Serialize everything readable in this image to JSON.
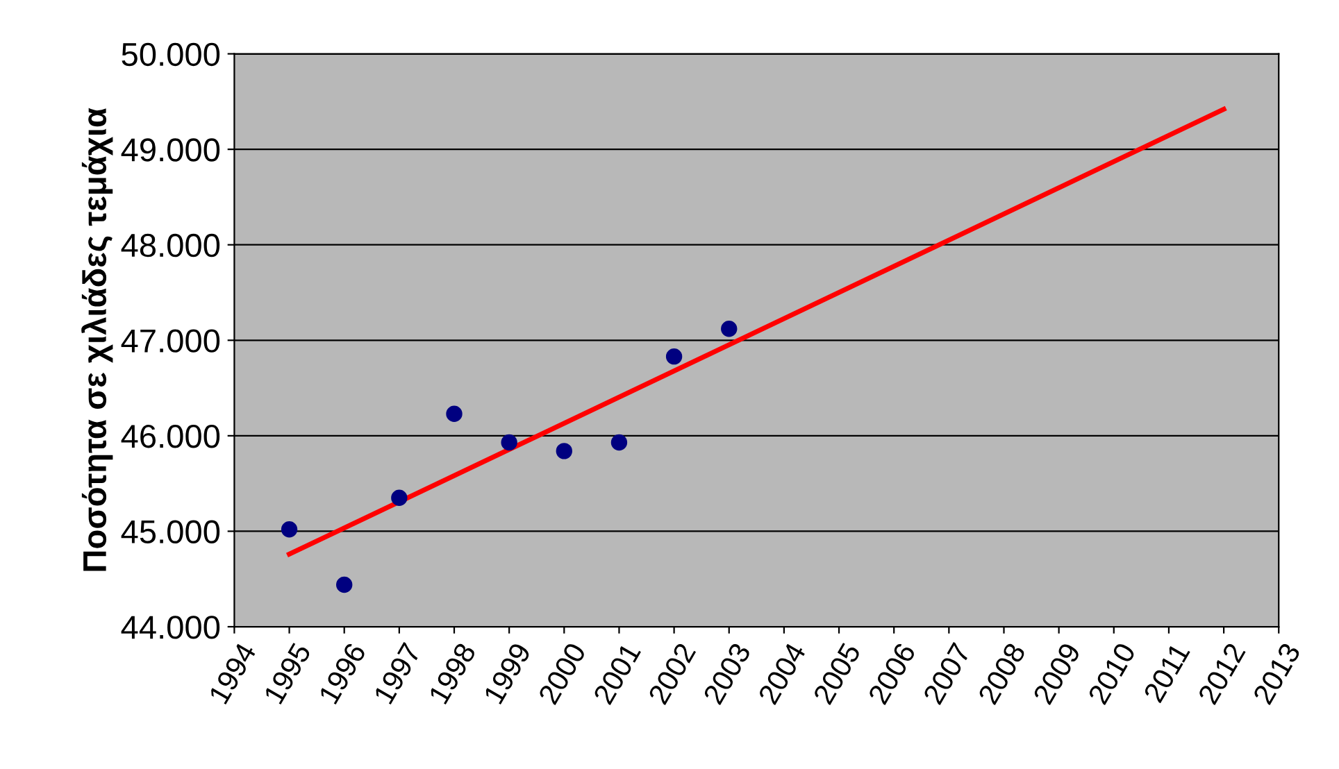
{
  "chart_data": {
    "type": "scatter",
    "ylabel": "Ποσότητα σε χιλιάδες τεμάχια",
    "x": [
      1995,
      1996,
      1997,
      1998,
      1999,
      2000,
      2001,
      2002,
      2003
    ],
    "series": [
      {
        "type": "scatter",
        "color": "#000080",
        "marker": "circle",
        "values": [
          45020,
          44440,
          45350,
          46230,
          45930,
          45840,
          45930,
          46830,
          47120
        ]
      },
      {
        "type": "line",
        "color": "#ff0000",
        "x": [
          1995,
          2012
        ],
        "values": [
          44760,
          49420
        ]
      }
    ],
    "xlim": [
      1994,
      2013
    ],
    "xticks": [
      1994,
      1995,
      1996,
      1997,
      1998,
      1999,
      2000,
      2001,
      2002,
      2003,
      2004,
      2005,
      2006,
      2007,
      2008,
      2009,
      2010,
      2011,
      2012,
      2013
    ],
    "ylim": [
      44000,
      50000
    ],
    "yticks": [
      {
        "value": 44000,
        "label": "44.000"
      },
      {
        "value": 45000,
        "label": "45.000"
      },
      {
        "value": 46000,
        "label": "46.000"
      },
      {
        "value": 47000,
        "label": "47.000"
      },
      {
        "value": 48000,
        "label": "48.000"
      },
      {
        "value": 49000,
        "label": "49.000"
      },
      {
        "value": 50000,
        "label": "50.000"
      }
    ],
    "grid": "y"
  }
}
